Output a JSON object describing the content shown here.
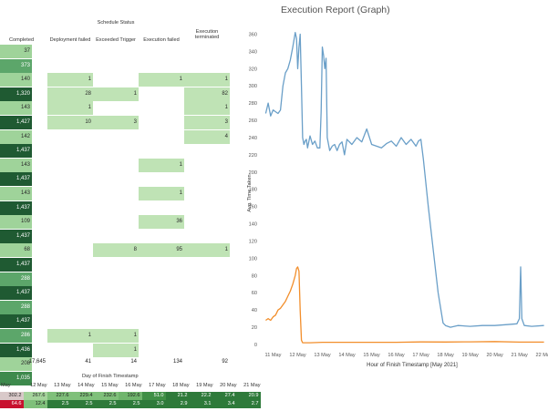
{
  "matrix": {
    "title": "Schedule Status",
    "columns": [
      "Completed",
      "Deployment failed",
      "Exceeded Trigger",
      "Execution failed",
      "Execution terminated"
    ],
    "rows": [
      [
        "37",
        "",
        "",
        "",
        ""
      ],
      [
        "373",
        "",
        "",
        "",
        ""
      ],
      [
        "140",
        "1",
        "",
        "1",
        "1"
      ],
      [
        "1,320",
        "28",
        "1",
        "",
        "82"
      ],
      [
        "143",
        "1",
        "",
        "",
        "1"
      ],
      [
        "1,427",
        "10",
        "3",
        "",
        "3"
      ],
      [
        "142",
        "",
        "",
        "",
        "4"
      ],
      [
        "1,437",
        "",
        "",
        "",
        ""
      ],
      [
        "143",
        "",
        "",
        "1",
        ""
      ],
      [
        "1,437",
        "",
        "",
        "",
        ""
      ],
      [
        "143",
        "",
        "",
        "1",
        ""
      ],
      [
        "1,437",
        "",
        "",
        "",
        ""
      ],
      [
        "109",
        "",
        "",
        "36",
        ""
      ],
      [
        "1,437",
        "",
        "",
        "",
        ""
      ],
      [
        "68",
        "",
        "8",
        "95",
        "1"
      ],
      [
        "1,437",
        "",
        "",
        "",
        ""
      ],
      [
        "288",
        "",
        "",
        "",
        ""
      ],
      [
        "1,437",
        "",
        "",
        "",
        ""
      ],
      [
        "288",
        "",
        "",
        "",
        ""
      ],
      [
        "1,437",
        "",
        "",
        "",
        ""
      ],
      [
        "286",
        "1",
        "1",
        "",
        ""
      ],
      [
        "1,436",
        "",
        "1",
        "",
        ""
      ],
      [
        "208",
        "",
        "",
        "",
        ""
      ],
      [
        "1,035",
        "",
        "",
        "",
        ""
      ]
    ],
    "totals": [
      "17,645",
      "41",
      "14",
      "134",
      "92"
    ]
  },
  "strip": {
    "title": "Day of Finish Timestamp",
    "columns": [
      "May",
      "12 May",
      "13 May",
      "14 May",
      "15 May",
      "16 May",
      "17 May",
      "18 May",
      "19 May",
      "20 May",
      "21 May"
    ],
    "rows": [
      [
        "302.2",
        "267.6",
        "227.6",
        "229.4",
        "232.6",
        "192.6",
        "51.0",
        "21.2",
        "22.2",
        "27.4",
        "20.9"
      ],
      [
        "64.6",
        "12.4",
        "2.5",
        "2.5",
        "2.5",
        "2.5",
        "3.0",
        "2.9",
        "3.1",
        "3.4",
        "2.7"
      ]
    ],
    "colors": {
      "row1": [
        "#d9c9c9",
        "#a5d49c",
        "#7fc07a",
        "#7fc07a",
        "#7fc07a",
        "#6fb56c",
        "#3f8f45",
        "#2e7a3a",
        "#2e7a3a",
        "#2e7a3a",
        "#2e7a3a"
      ],
      "row2": [
        "#c8102e",
        "#7fc07a",
        "#2e7a3a",
        "#2e7a3a",
        "#2e7a3a",
        "#2e7a3a",
        "#2e7a3a",
        "#2e7a3a",
        "#2e7a3a",
        "#2e7a3a",
        "#2e7a3a"
      ]
    }
  },
  "colors": {
    "completed_dark": "#1f5a32",
    "completed_mid": "#3e8a4d",
    "completed_light": "#5ca66a",
    "completed_pale": "#9fd39a",
    "other_fill": "#bfe3b5",
    "series_blue": "#6a9fc8",
    "series_orange": "#f28e2b"
  },
  "chart_data": {
    "type": "line",
    "title": "Execution Report (Graph)",
    "xlabel": "Hour of Finish Timestamp [May 2021]",
    "ylabel": "Avg. Time Taken",
    "xticks": [
      "11 May",
      "12 May",
      "13 May",
      "14 May",
      "15 May",
      "16 May",
      "17 May",
      "18 May",
      "19 May",
      "20 May",
      "21 May",
      "22 May"
    ],
    "yticks": [
      0,
      20,
      40,
      60,
      80,
      100,
      120,
      140,
      160,
      180,
      200,
      220,
      240,
      260,
      280,
      300,
      320,
      340,
      360
    ],
    "ylim": [
      0,
      370
    ],
    "xlim": [
      10.5,
      22.05
    ],
    "grid": false,
    "series": [
      {
        "color": "#6a9fc8",
        "x": [
          10.7,
          10.8,
          10.9,
          11.0,
          11.1,
          11.2,
          11.3,
          11.4,
          11.5,
          11.6,
          11.7,
          11.8,
          11.9,
          11.95,
          12.0,
          12.05,
          12.1,
          12.15,
          12.2,
          12.25,
          12.3,
          12.35,
          12.4,
          12.5,
          12.6,
          12.7,
          12.8,
          12.9,
          12.95,
          13.0,
          13.05,
          13.1,
          13.15,
          13.2,
          13.3,
          13.4,
          13.5,
          13.6,
          13.7,
          13.8,
          13.9,
          14.0,
          14.2,
          14.4,
          14.6,
          14.8,
          15.0,
          15.2,
          15.4,
          15.6,
          15.8,
          16.0,
          16.2,
          16.4,
          16.6,
          16.8,
          16.9,
          17.0,
          17.1,
          17.3,
          17.5,
          17.7,
          17.9,
          18.0,
          18.2,
          18.5,
          19.0,
          19.5,
          20.0,
          20.5,
          20.9,
          21.0,
          21.05,
          21.1,
          21.2,
          21.5,
          22.0
        ],
        "values": [
          268,
          280,
          265,
          272,
          270,
          268,
          272,
          300,
          315,
          320,
          330,
          345,
          362,
          355,
          320,
          345,
          360,
          300,
          240,
          232,
          236,
          238,
          228,
          242,
          232,
          236,
          228,
          228,
          270,
          345,
          335,
          320,
          332,
          240,
          225,
          230,
          232,
          225,
          232,
          235,
          220,
          238,
          232,
          240,
          235,
          250,
          232,
          230,
          228,
          233,
          236,
          230,
          240,
          232,
          238,
          230,
          236,
          238,
          215,
          160,
          110,
          60,
          25,
          22,
          20,
          22,
          21,
          22,
          22,
          23,
          24,
          30,
          90,
          30,
          22,
          21,
          22
        ]
      },
      {
        "color": "#f28e2b",
        "x": [
          10.7,
          10.8,
          10.9,
          11.0,
          11.1,
          11.2,
          11.3,
          11.4,
          11.5,
          11.6,
          11.7,
          11.8,
          11.9,
          11.95,
          12.0,
          12.05,
          12.1,
          12.15,
          12.2,
          12.5,
          13.0,
          14.0,
          15.0,
          16.0,
          17.0,
          18.0,
          19.0,
          20.0,
          21.0,
          22.0
        ],
        "values": [
          28,
          30,
          28,
          32,
          34,
          40,
          42,
          46,
          50,
          56,
          62,
          70,
          80,
          88,
          90,
          85,
          40,
          5,
          2,
          2,
          2.5,
          2.5,
          2.5,
          2.5,
          3,
          2.9,
          3.1,
          3.4,
          2.7,
          2.7
        ]
      }
    ]
  }
}
